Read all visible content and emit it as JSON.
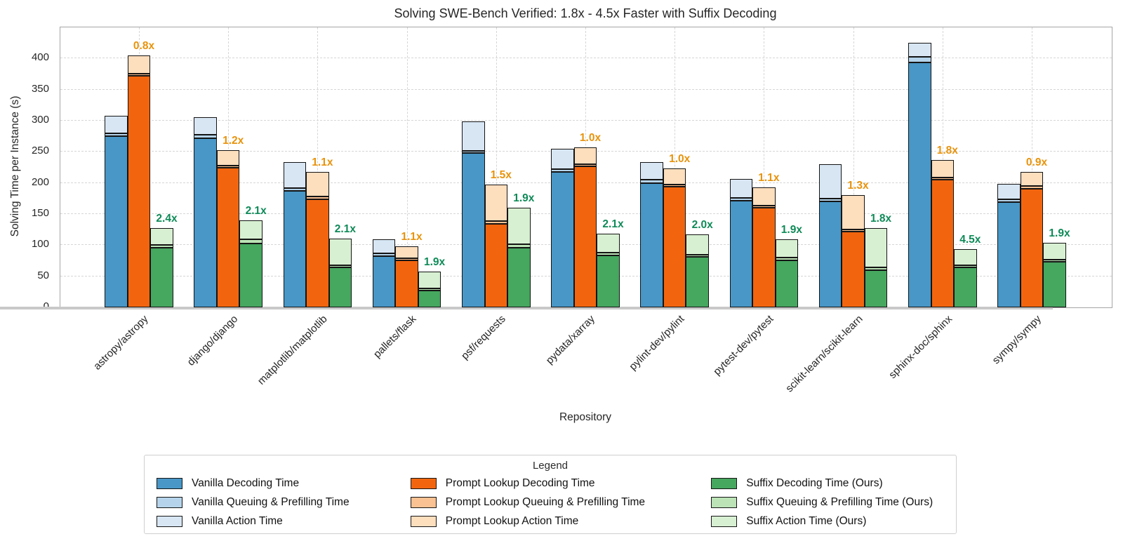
{
  "chart_data": {
    "type": "bar",
    "stacked": true,
    "title": "Solving SWE-Bench Verified: 1.8x - 4.5x Faster with Suffix Decoding",
    "xlabel": "Repository",
    "ylabel": "Solving Time per Instance (s)",
    "ylim": [
      0,
      450
    ],
    "yticks": [
      0,
      50,
      100,
      150,
      200,
      250,
      300,
      350,
      400
    ],
    "grid": "dashed horizontal at yticks and vertical at category centers",
    "series_order": [
      "vanilla",
      "prompt_lookup",
      "suffix"
    ],
    "segments_order": [
      "decoding",
      "queuing_prefilling",
      "action"
    ],
    "series_colors": {
      "vanilla": [
        "#4897C7",
        "#B5D4EB",
        "#D8E6F4"
      ],
      "prompt_lookup": [
        "#F2650E",
        "#FAC192",
        "#FDDEBD"
      ],
      "suffix": [
        "#46A75F",
        "#BBE3B6",
        "#D8F0D2"
      ]
    },
    "annotation_colors": {
      "prompt_lookup": "#E8930C",
      "suffix": "#0F8A58"
    },
    "legend": {
      "title": "Legend",
      "entries": [
        {
          "label": "Vanilla Decoding Time",
          "color": "#4897C7"
        },
        {
          "label": "Vanilla Queuing & Prefilling Time",
          "color": "#B5D4EB"
        },
        {
          "label": "Vanilla Action Time",
          "color": "#D8E6F4"
        },
        {
          "label": "Prompt Lookup Decoding Time",
          "color": "#F2650E"
        },
        {
          "label": "Prompt Lookup Queuing & Prefilling Time",
          "color": "#FAC192"
        },
        {
          "label": "Prompt Lookup Action Time",
          "color": "#FDDEBD"
        },
        {
          "label": "Suffix Decoding Time (Ours)",
          "color": "#46A75F"
        },
        {
          "label": "Suffix Queuing & Prefilling Time (Ours)",
          "color": "#BBE3B6"
        },
        {
          "label": "Suffix Action Time (Ours)",
          "color": "#D8F0D2"
        }
      ]
    },
    "bars": [
      {
        "label": "astropy/astropy",
        "vanilla": {
          "decoding": 275,
          "queuing_prefilling": 5,
          "action": 28
        },
        "prompt_lookup": {
          "decoding": 372,
          "queuing_prefilling": 4,
          "action": 29
        },
        "suffix": {
          "decoding": 96,
          "queuing_prefilling": 4,
          "action": 28
        },
        "speedups": {
          "prompt_lookup": "0.8x",
          "suffix": "2.4x"
        }
      },
      {
        "label": "django/django",
        "vanilla": {
          "decoding": 272,
          "queuing_prefilling": 5,
          "action": 29
        },
        "prompt_lookup": {
          "decoding": 224,
          "queuing_prefilling": 4,
          "action": 25
        },
        "suffix": {
          "decoding": 103,
          "queuing_prefilling": 6,
          "action": 31
        },
        "speedups": {
          "prompt_lookup": "1.2x",
          "suffix": "2.1x"
        }
      },
      {
        "label": "matplotlib/matplotlib",
        "vanilla": {
          "decoding": 187,
          "queuing_prefilling": 5,
          "action": 41
        },
        "prompt_lookup": {
          "decoding": 174,
          "queuing_prefilling": 4,
          "action": 40
        },
        "suffix": {
          "decoding": 64,
          "queuing_prefilling": 4,
          "action": 42
        },
        "speedups": {
          "prompt_lookup": "1.1x",
          "suffix": "2.1x"
        }
      },
      {
        "label": "pallets/flask",
        "vanilla": {
          "decoding": 82,
          "queuing_prefilling": 5,
          "action": 22
        },
        "prompt_lookup": {
          "decoding": 76,
          "queuing_prefilling": 3,
          "action": 19
        },
        "suffix": {
          "decoding": 27,
          "queuing_prefilling": 3,
          "action": 28
        },
        "speedups": {
          "prompt_lookup": "1.1x",
          "suffix": "1.9x"
        }
      },
      {
        "label": "psf/requests",
        "vanilla": {
          "decoding": 248,
          "queuing_prefilling": 4,
          "action": 47
        },
        "prompt_lookup": {
          "decoding": 134,
          "queuing_prefilling": 5,
          "action": 58
        },
        "suffix": {
          "decoding": 96,
          "queuing_prefilling": 5,
          "action": 59
        },
        "speedups": {
          "prompt_lookup": "1.5x",
          "suffix": "1.9x"
        }
      },
      {
        "label": "pydata/xarray",
        "vanilla": {
          "decoding": 218,
          "queuing_prefilling": 4,
          "action": 33
        },
        "prompt_lookup": {
          "decoding": 227,
          "queuing_prefilling": 3,
          "action": 27
        },
        "suffix": {
          "decoding": 84,
          "queuing_prefilling": 4,
          "action": 31
        },
        "speedups": {
          "prompt_lookup": "1.0x",
          "suffix": "2.1x"
        }
      },
      {
        "label": "pylint-dev/pylint",
        "vanilla": {
          "decoding": 200,
          "queuing_prefilling": 5,
          "action": 29
        },
        "prompt_lookup": {
          "decoding": 194,
          "queuing_prefilling": 3,
          "action": 26
        },
        "suffix": {
          "decoding": 81,
          "queuing_prefilling": 4,
          "action": 32
        },
        "speedups": {
          "prompt_lookup": "1.0x",
          "suffix": "2.0x"
        }
      },
      {
        "label": "pytest-dev/pytest",
        "vanilla": {
          "decoding": 171,
          "queuing_prefilling": 5,
          "action": 30
        },
        "prompt_lookup": {
          "decoding": 160,
          "queuing_prefilling": 3,
          "action": 30
        },
        "suffix": {
          "decoding": 76,
          "queuing_prefilling": 4,
          "action": 29
        },
        "speedups": {
          "prompt_lookup": "1.1x",
          "suffix": "1.9x"
        }
      },
      {
        "label": "scikit-learn/scikit-learn",
        "vanilla": {
          "decoding": 170,
          "queuing_prefilling": 5,
          "action": 55
        },
        "prompt_lookup": {
          "decoding": 122,
          "queuing_prefilling": 3,
          "action": 56
        },
        "suffix": {
          "decoding": 60,
          "queuing_prefilling": 4,
          "action": 64
        },
        "speedups": {
          "prompt_lookup": "1.3x",
          "suffix": "1.8x"
        }
      },
      {
        "label": "sphinx-doc/sphinx",
        "vanilla": {
          "decoding": 394,
          "queuing_prefilling": 9,
          "action": 22
        },
        "prompt_lookup": {
          "decoding": 205,
          "queuing_prefilling": 4,
          "action": 28
        },
        "suffix": {
          "decoding": 64,
          "queuing_prefilling": 4,
          "action": 26
        },
        "speedups": {
          "prompt_lookup": "1.8x",
          "suffix": "4.5x"
        }
      },
      {
        "label": "sympy/sympy",
        "vanilla": {
          "decoding": 169,
          "queuing_prefilling": 5,
          "action": 25
        },
        "prompt_lookup": {
          "decoding": 191,
          "queuing_prefilling": 4,
          "action": 23
        },
        "suffix": {
          "decoding": 73,
          "queuing_prefilling": 4,
          "action": 27
        },
        "speedups": {
          "prompt_lookup": "0.9x",
          "suffix": "1.9x"
        }
      }
    ]
  }
}
